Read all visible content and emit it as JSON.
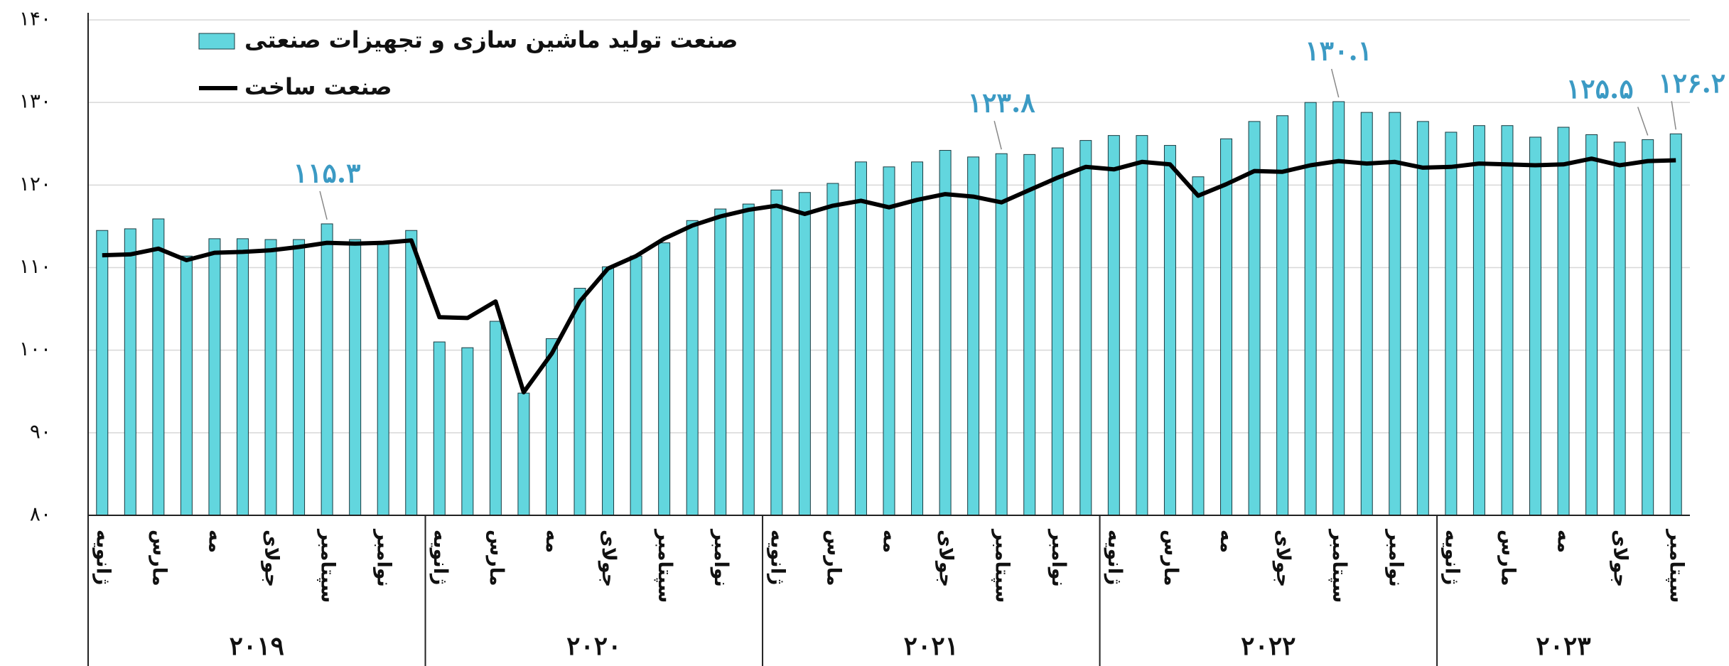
{
  "chart_data": {
    "type": "bar_line",
    "ylim": [
      80,
      140
    ],
    "yticks": [
      {
        "value": 80,
        "label": "۸۰"
      },
      {
        "value": 90,
        "label": "۹۰"
      },
      {
        "value": 100,
        "label": "۱۰۰"
      },
      {
        "value": 110,
        "label": "۱۱۰"
      },
      {
        "value": 120,
        "label": "۱۲۰"
      },
      {
        "value": 130,
        "label": "۱۳۰"
      },
      {
        "value": 140,
        "label": "۱۴۰"
      }
    ],
    "grid": true,
    "categories": [
      "ژانویه",
      null,
      "مارس",
      null,
      "مه",
      null,
      "جولای",
      null,
      "سپتامبر",
      null,
      "نوامبر",
      null,
      "ژانویه",
      null,
      "مارس",
      null,
      "مه",
      null,
      "جولای",
      null,
      "سپتامبر",
      null,
      "نوامبر",
      null,
      "ژانویه",
      null,
      "مارس",
      null,
      "مه",
      null,
      "جولای",
      null,
      "سپتامبر",
      null,
      "نوامبر",
      null,
      "ژانویه",
      null,
      "مارس",
      null,
      "مه",
      null,
      "جولای",
      null,
      "سپتامبر",
      null,
      "نوامبر",
      null,
      "ژانویه",
      null,
      "مارس",
      null,
      "مه",
      null,
      "جولای",
      null,
      "سپتامبر"
    ],
    "year_labels": [
      "۲۰۱۹",
      "۲۰۲۰",
      "۲۰۲۱",
      "۲۰۲۲",
      "۲۰۲۳"
    ],
    "series": [
      {
        "name": "صنعت تولید ماشین سازی و تجهیزات صنعتی",
        "type": "bar",
        "color": "#62d6de",
        "values": [
          114.5,
          114.7,
          115.9,
          111.4,
          113.5,
          113.5,
          113.4,
          113.4,
          115.3,
          113.4,
          113.1,
          114.5,
          101.0,
          100.3,
          103.5,
          94.8,
          101.4,
          107.5,
          110.1,
          111.4,
          113.0,
          115.7,
          117.1,
          117.7,
          119.4,
          119.1,
          120.2,
          122.8,
          122.2,
          122.8,
          124.2,
          123.4,
          123.8,
          123.7,
          124.5,
          125.4,
          126.0,
          126.0,
          124.8,
          121.0,
          125.6,
          127.7,
          128.4,
          130.0,
          130.1,
          128.8,
          128.8,
          127.7,
          126.4,
          127.2,
          127.2,
          125.8,
          127.0,
          126.1,
          125.2,
          125.5,
          126.2
        ],
        "value_labels": [
          null,
          null,
          null,
          null,
          null,
          null,
          null,
          null,
          "۱۱۵.۳",
          null,
          null,
          null,
          null,
          null,
          null,
          null,
          null,
          null,
          null,
          null,
          null,
          null,
          null,
          null,
          null,
          null,
          null,
          null,
          null,
          null,
          null,
          null,
          "۱۲۳.۸",
          null,
          null,
          null,
          null,
          null,
          null,
          null,
          null,
          null,
          null,
          null,
          "۱۳۰.۱",
          null,
          null,
          null,
          null,
          null,
          null,
          null,
          null,
          null,
          null,
          "۱۲۵.۵",
          "۱۲۶.۲"
        ]
      },
      {
        "name": "صنعت ساخت",
        "type": "line",
        "color": "#000000",
        "values": [
          111.5,
          111.6,
          112.3,
          110.9,
          111.8,
          111.9,
          112.1,
          112.5,
          113.0,
          112.9,
          113.0,
          113.3,
          104.0,
          103.9,
          105.9,
          94.9,
          99.6,
          105.9,
          109.9,
          111.4,
          113.5,
          115.1,
          116.2,
          117.0,
          117.5,
          116.5,
          117.5,
          118.1,
          117.3,
          118.2,
          118.9,
          118.6,
          117.9,
          119.4,
          120.9,
          122.2,
          121.9,
          122.8,
          122.5,
          118.7,
          120.1,
          121.7,
          121.6,
          122.4,
          122.9,
          122.6,
          122.8,
          122.1,
          122.2,
          122.6,
          122.5,
          122.4,
          122.5,
          123.2,
          122.4,
          122.9,
          123.0
        ]
      }
    ]
  }
}
